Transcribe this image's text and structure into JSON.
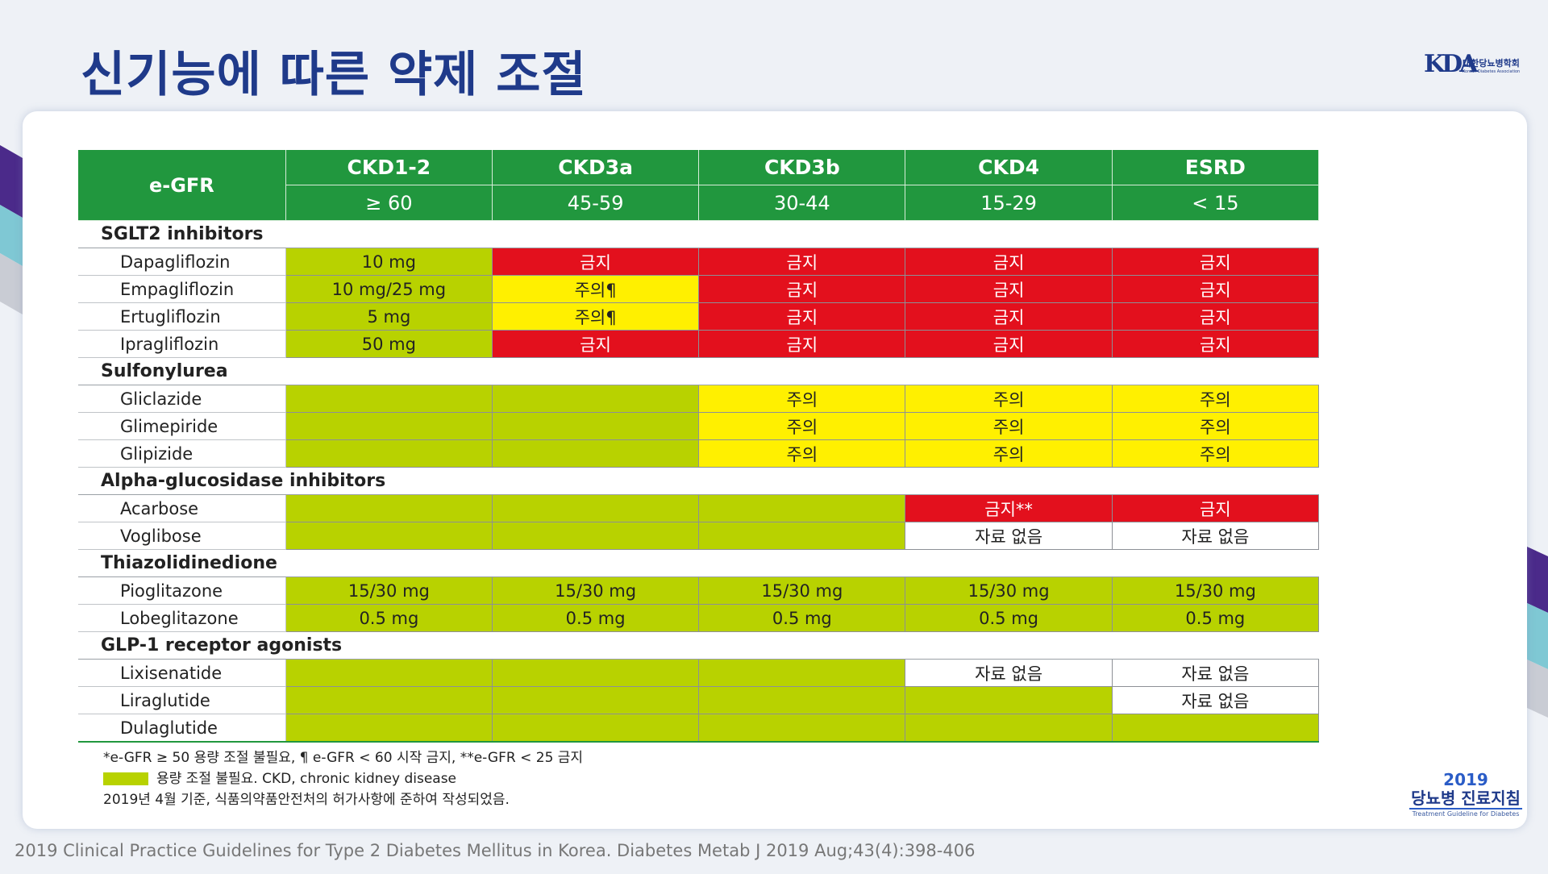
{
  "page": {
    "title": "신기능에 따른 약제 조절",
    "citation": "2019 Clinical Practice Guidelines for Type 2 Diabetes Mellitus in Korea. Diabetes Metab J 2019 Aug;43(4):398-406"
  },
  "logo": {
    "mark": "KDA",
    "name": "대한당뇨병학회",
    "subtitle": "Korean Diabetes Association"
  },
  "badge": {
    "year": "2019",
    "name": "당뇨병 진료지침",
    "subtitle": "Treatment Guideline for Diabetes"
  },
  "colors": {
    "header_green": "#21973e",
    "ok_green": "#b8d200",
    "contraindicated_red": "#e3101d",
    "caution_yellow": "#fff000",
    "title_blue": "#1f3a8a"
  },
  "table": {
    "header_label": "e-GFR",
    "stages": [
      "CKD1-2",
      "CKD3a",
      "CKD3b",
      "CKD4",
      "ESRD"
    ],
    "ranges": [
      "≥ 60",
      "45-59",
      "30-44",
      "15-29",
      "< 15"
    ],
    "groups": [
      {
        "name": "SGLT2 inhibitors",
        "drugs": [
          {
            "name": "Dapagliflozin",
            "cells": [
              {
                "t": "10 mg",
                "c": "green"
              },
              {
                "t": "금지",
                "c": "red"
              },
              {
                "t": "금지",
                "c": "red"
              },
              {
                "t": "금지",
                "c": "red"
              },
              {
                "t": "금지",
                "c": "red"
              }
            ]
          },
          {
            "name": "Empagliflozin",
            "cells": [
              {
                "t": "10 mg/25 mg",
                "c": "green"
              },
              {
                "t": "주의¶",
                "c": "yellow"
              },
              {
                "t": "금지",
                "c": "red"
              },
              {
                "t": "금지",
                "c": "red"
              },
              {
                "t": "금지",
                "c": "red"
              }
            ]
          },
          {
            "name": "Ertugliflozin",
            "cells": [
              {
                "t": "5 mg",
                "c": "green"
              },
              {
                "t": "주의¶",
                "c": "yellow"
              },
              {
                "t": "금지",
                "c": "red"
              },
              {
                "t": "금지",
                "c": "red"
              },
              {
                "t": "금지",
                "c": "red"
              }
            ]
          },
          {
            "name": "Ipragliflozin",
            "cells": [
              {
                "t": "50 mg",
                "c": "green"
              },
              {
                "t": "금지",
                "c": "red"
              },
              {
                "t": "금지",
                "c": "red"
              },
              {
                "t": "금지",
                "c": "red"
              },
              {
                "t": "금지",
                "c": "red"
              }
            ]
          }
        ]
      },
      {
        "name": "Sulfonylurea",
        "drugs": [
          {
            "name": "Gliclazide",
            "cells": [
              {
                "t": "",
                "c": "green"
              },
              {
                "t": "",
                "c": "green"
              },
              {
                "t": "주의",
                "c": "yellow"
              },
              {
                "t": "주의",
                "c": "yellow"
              },
              {
                "t": "주의",
                "c": "yellow"
              }
            ]
          },
          {
            "name": "Glimepiride",
            "cells": [
              {
                "t": "",
                "c": "green"
              },
              {
                "t": "",
                "c": "green"
              },
              {
                "t": "주의",
                "c": "yellow"
              },
              {
                "t": "주의",
                "c": "yellow"
              },
              {
                "t": "주의",
                "c": "yellow"
              }
            ]
          },
          {
            "name": "Glipizide",
            "cells": [
              {
                "t": "",
                "c": "green"
              },
              {
                "t": "",
                "c": "green"
              },
              {
                "t": "주의",
                "c": "yellow"
              },
              {
                "t": "주의",
                "c": "yellow"
              },
              {
                "t": "주의",
                "c": "yellow"
              }
            ]
          }
        ]
      },
      {
        "name": "Alpha-glucosidase inhibitors",
        "drugs": [
          {
            "name": "Acarbose",
            "cells": [
              {
                "t": "",
                "c": "green"
              },
              {
                "t": "",
                "c": "green"
              },
              {
                "t": "",
                "c": "green"
              },
              {
                "t": "금지**",
                "c": "red"
              },
              {
                "t": "금지",
                "c": "red"
              }
            ]
          },
          {
            "name": "Voglibose",
            "cells": [
              {
                "t": "",
                "c": "green"
              },
              {
                "t": "",
                "c": "green"
              },
              {
                "t": "",
                "c": "green"
              },
              {
                "t": "자료 없음",
                "c": "white"
              },
              {
                "t": "자료 없음",
                "c": "white"
              }
            ]
          }
        ]
      },
      {
        "name": "Thiazolidinedione",
        "drugs": [
          {
            "name": "Pioglitazone",
            "cells": [
              {
                "t": "15/30 mg",
                "c": "green"
              },
              {
                "t": "15/30 mg",
                "c": "green"
              },
              {
                "t": "15/30 mg",
                "c": "green"
              },
              {
                "t": "15/30 mg",
                "c": "green"
              },
              {
                "t": "15/30 mg",
                "c": "green"
              }
            ]
          },
          {
            "name": "Lobeglitazone",
            "cells": [
              {
                "t": "0.5 mg",
                "c": "green"
              },
              {
                "t": "0.5 mg",
                "c": "green"
              },
              {
                "t": "0.5 mg",
                "c": "green"
              },
              {
                "t": "0.5 mg",
                "c": "green"
              },
              {
                "t": "0.5 mg",
                "c": "green"
              }
            ]
          }
        ]
      },
      {
        "name": "GLP-1 receptor agonists",
        "drugs": [
          {
            "name": "Lixisenatide",
            "cells": [
              {
                "t": "",
                "c": "green"
              },
              {
                "t": "",
                "c": "green"
              },
              {
                "t": "",
                "c": "green"
              },
              {
                "t": "자료 없음",
                "c": "white"
              },
              {
                "t": "자료 없음",
                "c": "white"
              }
            ]
          },
          {
            "name": "Liraglutide",
            "cells": [
              {
                "t": "",
                "c": "green"
              },
              {
                "t": "",
                "c": "green"
              },
              {
                "t": "",
                "c": "green"
              },
              {
                "t": "",
                "c": "green"
              },
              {
                "t": "자료 없음",
                "c": "white"
              }
            ]
          },
          {
            "name": "Dulaglutide",
            "cells": [
              {
                "t": "",
                "c": "green"
              },
              {
                "t": "",
                "c": "green"
              },
              {
                "t": "",
                "c": "green"
              },
              {
                "t": "",
                "c": "green"
              },
              {
                "t": "",
                "c": "green"
              }
            ]
          }
        ]
      }
    ]
  },
  "notes": {
    "footnote": "*e-GFR ≥ 50 용량 조절 불필요,  ¶  e-GFR < 60 시작 금지, **e-GFR < 25 금지",
    "legend": "용량 조절 불필요.   CKD, chronic kidney disease",
    "basis": "2019년 4월 기준, 식품의약품안전처의 허가사항에 준하여 작성되었음."
  }
}
